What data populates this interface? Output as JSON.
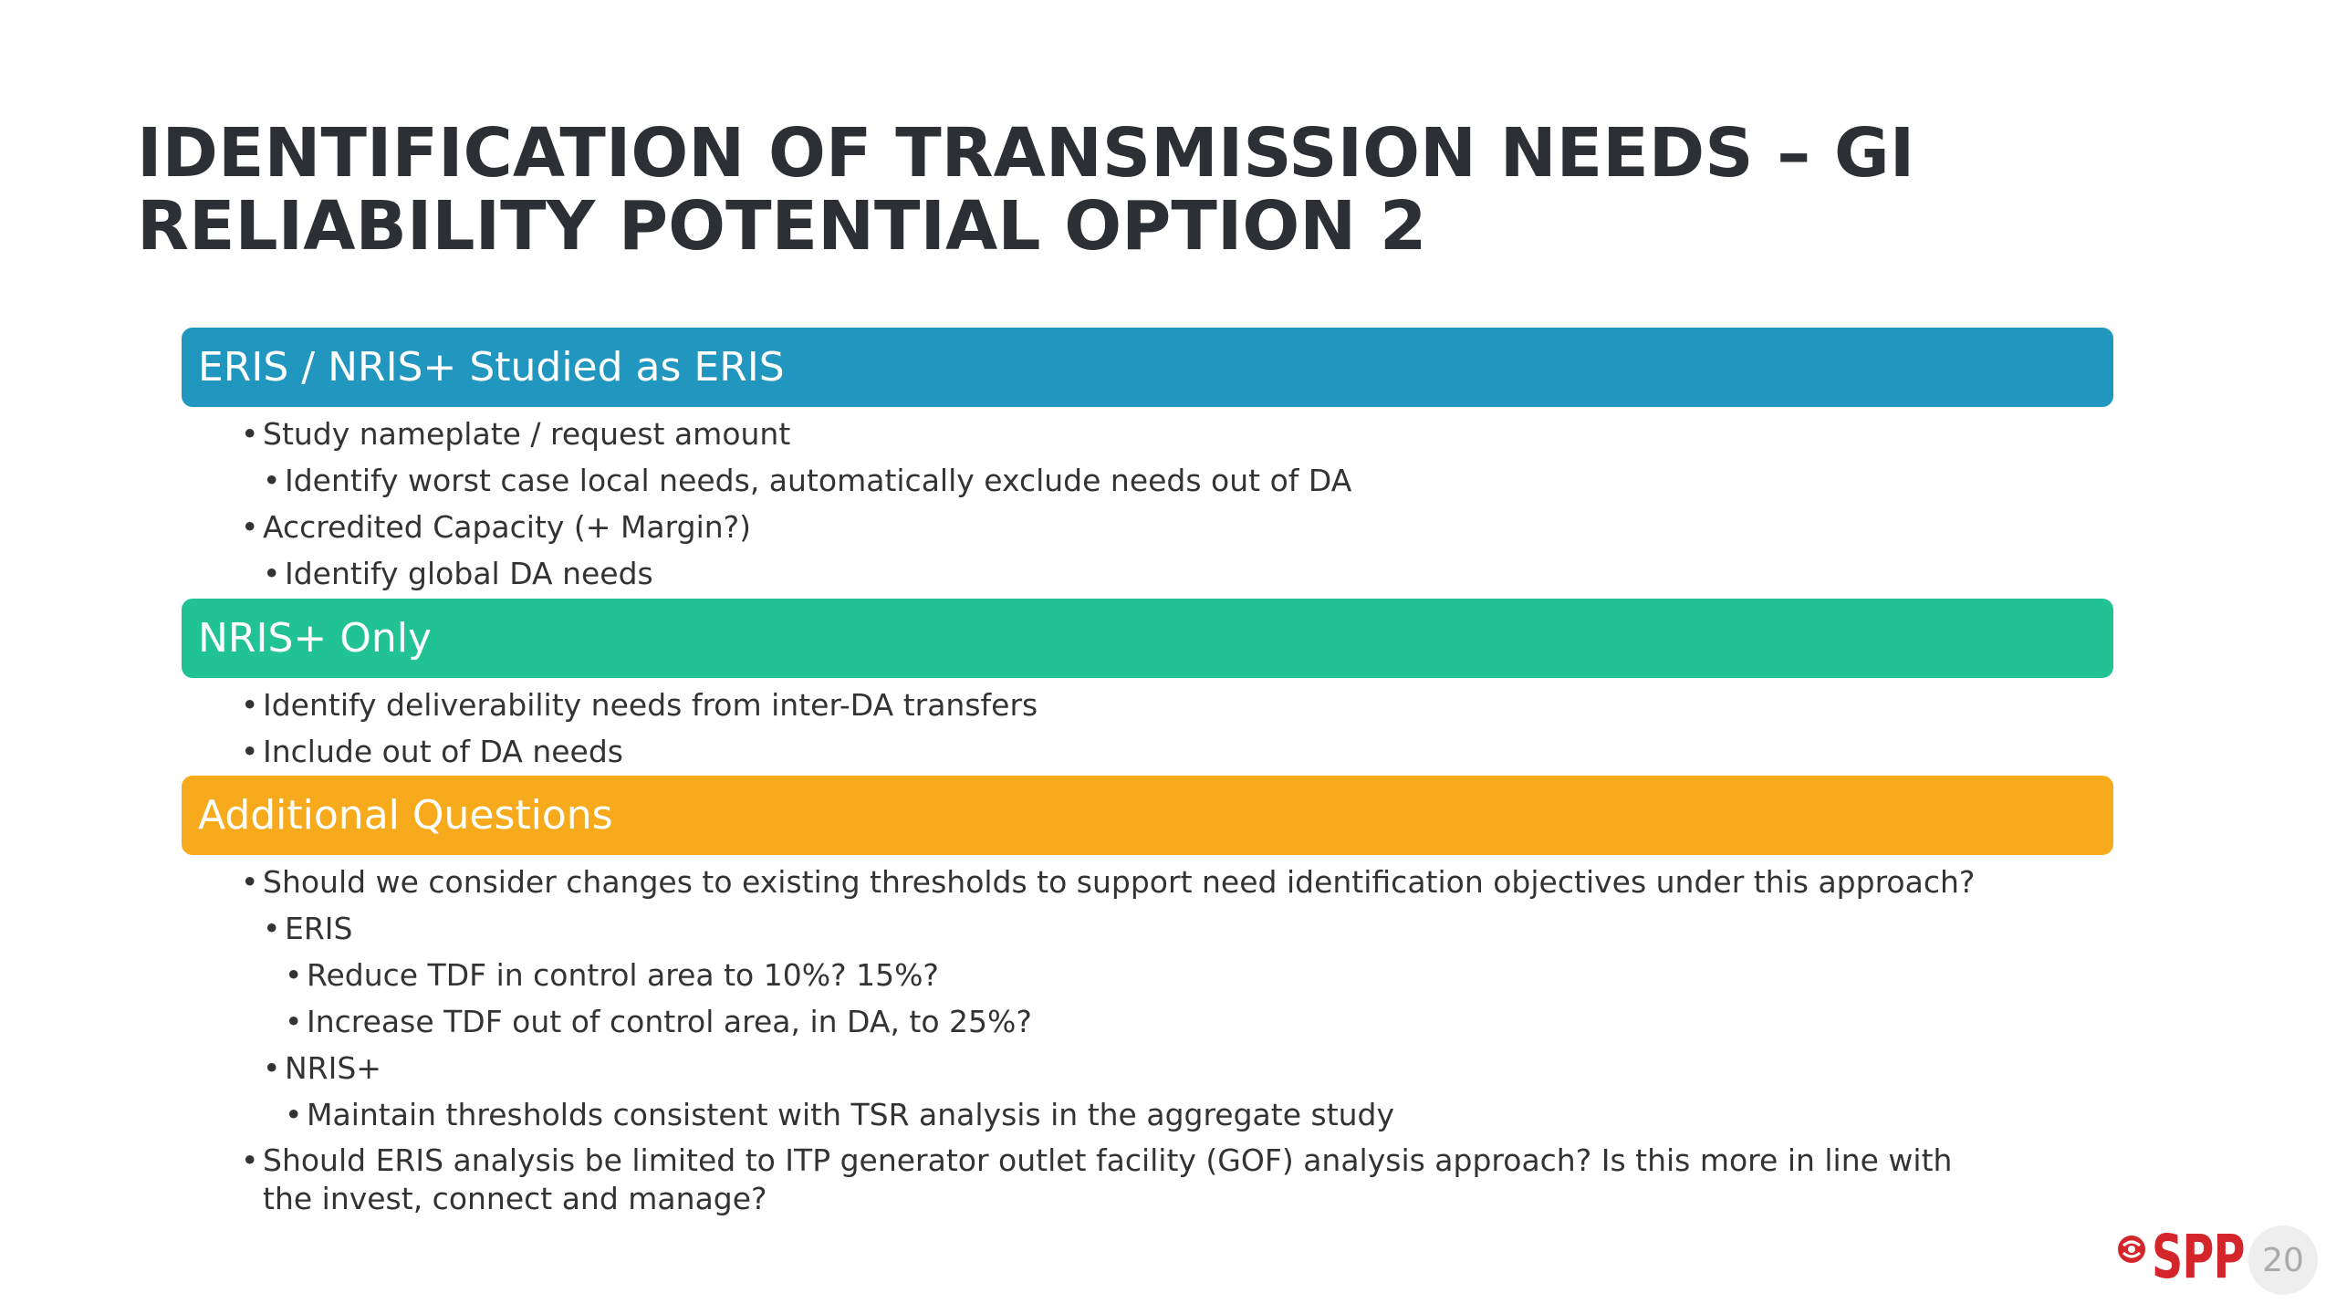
{
  "title": {
    "line1": "IDENTIFICATION OF TRANSMISSION NEEDS – GI",
    "line2": "RELIABILITY POTENTIAL OPTION 2"
  },
  "sections": {
    "eris": {
      "header": "ERIS / NRIS+ Studied as ERIS",
      "color": "#2196bf",
      "items": [
        "Study nameplate / request amount",
        "Identify worst case local needs, automatically exclude needs out of DA",
        "Accredited Capacity (+ Margin?)",
        "Identify global DA needs"
      ]
    },
    "nris": {
      "header": "NRIS+ Only",
      "color": "#21c294",
      "items": [
        "Identify deliverability needs from inter-DA transfers",
        "Include out of DA needs"
      ]
    },
    "questions": {
      "header": "Additional Questions",
      "color": "#f7ab1c",
      "items": [
        "Should we consider changes to existing thresholds to support need identification objectives under this approach?",
        "ERIS",
        "Reduce TDF in control area to 10%? 15%?",
        "Increase TDF out of control area, in DA, to 25%?",
        "NRIS+",
        "Maintain thresholds consistent with TSR analysis in the aggregate study",
        "Should ERIS analysis be limited to ITP generator outlet facility (GOF) analysis approach?  Is this more in line with the invest, connect and manage?"
      ]
    }
  },
  "bullet_char": "•",
  "footer": {
    "logo_text": "SPP",
    "logo_color": "#d3252a",
    "page_number": "20"
  }
}
